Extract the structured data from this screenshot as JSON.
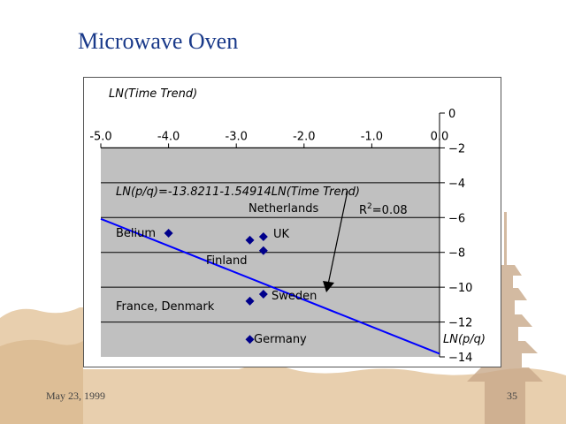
{
  "slide": {
    "title": "Microwave Oven",
    "date": "May 23, 1999",
    "page_number": "35"
  },
  "colors": {
    "title": "#1a3a8a",
    "plot_area": "#c0c0c0",
    "points": "#00008b",
    "regression_line": "#0000ff",
    "decoration": "#e8cfae"
  },
  "chart_data": {
    "type": "scatter",
    "title": "",
    "xlabel": "LN(Time Trend)",
    "ylabel": "LN(p/q)",
    "xlim": [
      -5.0,
      0.0
    ],
    "ylim": [
      -14,
      0
    ],
    "x_ticks": [
      "-5.0",
      "-4.0",
      "-3.0",
      "-2.0",
      "-1.0",
      "0.0"
    ],
    "y_ticks": [
      "0",
      "-2",
      "-4",
      "-6",
      "-8",
      "-10",
      "-12",
      "-14"
    ],
    "grid": "horizontal",
    "points": [
      {
        "label": "Belium",
        "x": -4.0,
        "y": -6.9
      },
      {
        "label": "Netherlands",
        "x": -2.8,
        "y": -7.3
      },
      {
        "label": "UK",
        "x": -2.6,
        "y": -7.1
      },
      {
        "label": "Finland",
        "x": -2.6,
        "y": -7.9
      },
      {
        "label": "Sweden",
        "x": -2.6,
        "y": -10.4
      },
      {
        "label": "France, Denmark",
        "x": -2.8,
        "y": -10.8
      },
      {
        "label": "Germany",
        "x": -2.8,
        "y": -13.0
      }
    ],
    "regression": {
      "intercept": -13.8211,
      "slope": -1.54914,
      "x_range": [
        -5.0,
        0.0
      ],
      "equation": "LN(p/q)=-13.8211-1.54914LN(Time Trend)",
      "r2_label": "R",
      "r2_sup": "2",
      "r2_value": "=0.08"
    }
  }
}
